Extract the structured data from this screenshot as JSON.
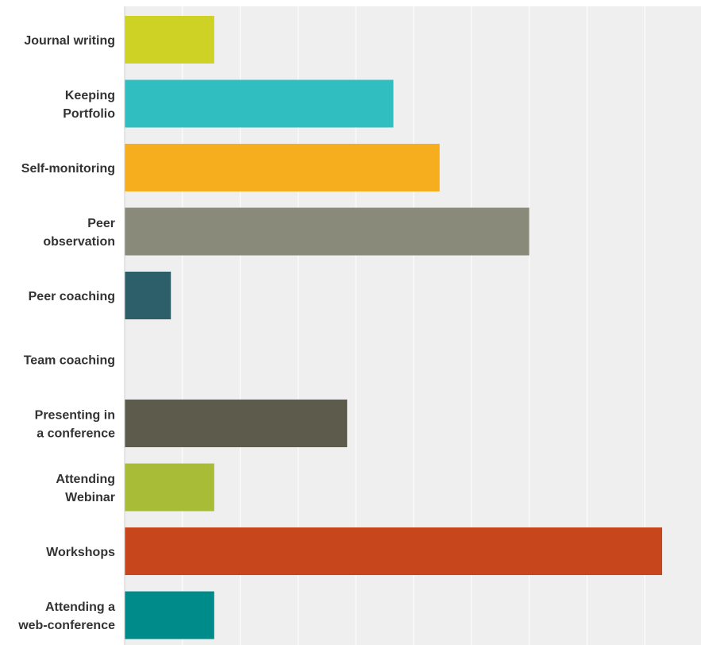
{
  "chart_data": {
    "type": "bar",
    "orientation": "horizontal",
    "categories": [
      [
        "Journal writing"
      ],
      [
        "Keeping",
        "Portfolio"
      ],
      [
        "Self-monitoring"
      ],
      [
        "Peer",
        "observation"
      ],
      [
        "Peer coaching"
      ],
      [
        "Team coaching"
      ],
      [
        "Presenting in",
        "a conference"
      ],
      [
        "Attending",
        "Webinar"
      ],
      [
        "Workshops"
      ],
      [
        "Attending a",
        "web-conference"
      ]
    ],
    "values": [
      1.55,
      4.65,
      5.45,
      7.0,
      0.8,
      0,
      3.85,
      1.55,
      9.3,
      1.55
    ],
    "colors": [
      "#cdd225",
      "#31bec0",
      "#f6ae1e",
      "#8a8a7b",
      "#2c5f6a",
      "#cccccc",
      "#5c5b4c",
      "#a8bc38",
      "#c8461c",
      "#008b8b"
    ],
    "xlim": [
      0,
      10
    ],
    "gridlines": 10,
    "grid": true,
    "background": "#efefef",
    "xlabel": "",
    "ylabel": "",
    "title": ""
  }
}
